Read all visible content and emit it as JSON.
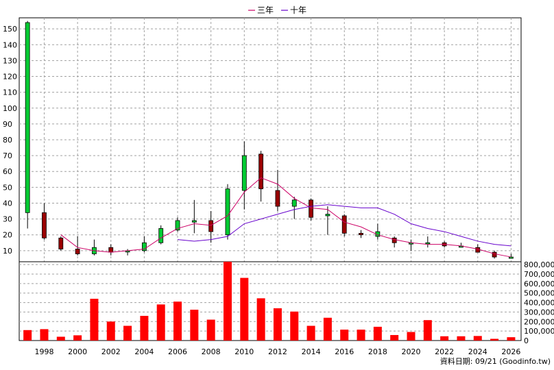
{
  "legend": [
    {
      "label": "三年",
      "color": "#cc0066"
    },
    {
      "label": "十年",
      "color": "#6600cc"
    }
  ],
  "footer": "資料日期: 09/21  (Goodinfo.tw)",
  "colors": {
    "up_candle": "#00cc33",
    "down_candle": "#990000",
    "volume_bar": "#ff0000",
    "grid": "#a0a0a0"
  },
  "chart_data": [
    {
      "type": "candlestick",
      "ylim": [
        3,
        157
      ],
      "y_ticks": [
        10,
        20,
        30,
        40,
        50,
        60,
        70,
        80,
        90,
        100,
        110,
        120,
        130,
        140,
        150
      ],
      "x_tick_labels": [
        "1998",
        "2000",
        "2002",
        "2004",
        "2006",
        "2008",
        "2010",
        "2012",
        "2014",
        "2016",
        "2018",
        "2020",
        "2022",
        "2024",
        "2026"
      ],
      "grid": true,
      "candles": [
        {
          "year": 1997,
          "open": 34,
          "high": 155,
          "low": 24,
          "close": 154
        },
        {
          "year": 1998,
          "open": 34,
          "high": 40,
          "low": 17,
          "close": 18
        },
        {
          "year": 1999,
          "open": 18,
          "high": 19,
          "low": 10,
          "close": 11
        },
        {
          "year": 2000,
          "open": 11,
          "high": 19,
          "low": 7,
          "close": 8
        },
        {
          "year": 2001,
          "open": 8,
          "high": 17,
          "low": 7,
          "close": 12
        },
        {
          "year": 2002,
          "open": 12,
          "high": 14,
          "low": 7,
          "close": 9
        },
        {
          "year": 2003,
          "open": 10,
          "high": 11,
          "low": 7,
          "close": 10
        },
        {
          "year": 2004,
          "open": 10,
          "high": 19,
          "low": 9,
          "close": 15
        },
        {
          "year": 2005,
          "open": 15,
          "high": 26,
          "low": 14,
          "close": 24
        },
        {
          "year": 2006,
          "open": 23,
          "high": 31,
          "low": 22,
          "close": 29
        },
        {
          "year": 2007,
          "open": 28,
          "high": 42,
          "low": 21,
          "close": 29
        },
        {
          "year": 2008,
          "open": 29,
          "high": 35,
          "low": 15,
          "close": 22
        },
        {
          "year": 2009,
          "open": 20,
          "high": 52,
          "low": 17,
          "close": 49
        },
        {
          "year": 2010,
          "open": 48,
          "high": 79,
          "low": 36,
          "close": 70
        },
        {
          "year": 2011,
          "open": 71,
          "high": 73,
          "low": 41,
          "close": 49
        },
        {
          "year": 2012,
          "open": 48,
          "high": 61,
          "low": 35,
          "close": 38
        },
        {
          "year": 2013,
          "open": 38,
          "high": 44,
          "low": 30,
          "close": 42
        },
        {
          "year": 2014,
          "open": 42,
          "high": 43,
          "low": 29,
          "close": 31
        },
        {
          "year": 2015,
          "open": 32,
          "high": 38,
          "low": 20,
          "close": 33
        },
        {
          "year": 2016,
          "open": 32,
          "high": 33,
          "low": 19,
          "close": 21
        },
        {
          "year": 2017,
          "open": 21,
          "high": 23,
          "low": 18,
          "close": 20
        },
        {
          "year": 2018,
          "open": 19,
          "high": 27,
          "low": 17,
          "close": 22
        },
        {
          "year": 2019,
          "open": 18,
          "high": 19,
          "low": 12,
          "close": 15
        },
        {
          "year": 2020,
          "open": 15,
          "high": 17,
          "low": 10,
          "close": 15
        },
        {
          "year": 2021,
          "open": 15,
          "high": 19,
          "low": 12,
          "close": 15
        },
        {
          "year": 2022,
          "open": 15,
          "high": 16,
          "low": 12,
          "close": 13
        },
        {
          "year": 2023,
          "open": 13,
          "high": 15,
          "low": 12,
          "close": 13
        },
        {
          "year": 2024,
          "open": 12,
          "high": 14,
          "low": 9,
          "close": 9
        },
        {
          "year": 2025,
          "open": 9,
          "high": 10,
          "low": 5,
          "close": 6
        },
        {
          "year": 2026,
          "open": 6,
          "high": 8,
          "low": 5,
          "close": 6
        }
      ],
      "series": [
        {
          "name": "三年",
          "x": [
            1999,
            2000,
            2001,
            2002,
            2003,
            2004,
            2005,
            2006,
            2007,
            2008,
            2009,
            2010,
            2011,
            2012,
            2013,
            2014,
            2015,
            2016,
            2017,
            2018,
            2019,
            2020,
            2021,
            2022,
            2023,
            2024,
            2025,
            2026
          ],
          "values": [
            20,
            12,
            10,
            9,
            10,
            11,
            18,
            24,
            27,
            26,
            32,
            47,
            56,
            52,
            43,
            37,
            36,
            28,
            25,
            20,
            17,
            15,
            14,
            14,
            13,
            11,
            8,
            6
          ]
        },
        {
          "name": "十年",
          "x": [
            2006,
            2007,
            2008,
            2009,
            2010,
            2011,
            2012,
            2013,
            2014,
            2015,
            2016,
            2017,
            2018,
            2019,
            2020,
            2021,
            2022,
            2023,
            2024,
            2025,
            2026
          ],
          "values": [
            17,
            16,
            17,
            19,
            27,
            30,
            33,
            36,
            38,
            39,
            38,
            37,
            37,
            33,
            27,
            24,
            22,
            19,
            16,
            14,
            13
          ]
        }
      ]
    },
    {
      "type": "bar",
      "ylim": [
        0,
        830000
      ],
      "y_ticks": [
        0,
        100000,
        200000,
        300000,
        400000,
        500000,
        600000,
        700000,
        800000
      ],
      "y_tick_labels": [
        "0",
        "100,000",
        "200,000",
        "300,000",
        "400,000",
        "500,000",
        "600,000",
        "700,000",
        "800,000"
      ],
      "x": [
        1997,
        1998,
        1999,
        2000,
        2001,
        2002,
        2003,
        2004,
        2005,
        2006,
        2007,
        2008,
        2009,
        2010,
        2011,
        2012,
        2013,
        2014,
        2015,
        2016,
        2017,
        2018,
        2019,
        2020,
        2021,
        2022,
        2023,
        2024,
        2025,
        2026
      ],
      "values": [
        110000,
        120000,
        40000,
        55000,
        440000,
        200000,
        155000,
        260000,
        380000,
        410000,
        325000,
        220000,
        830000,
        660000,
        445000,
        340000,
        305000,
        155000,
        240000,
        115000,
        115000,
        145000,
        58000,
        90000,
        215000,
        45000,
        45000,
        48000,
        18000,
        35000
      ]
    }
  ]
}
